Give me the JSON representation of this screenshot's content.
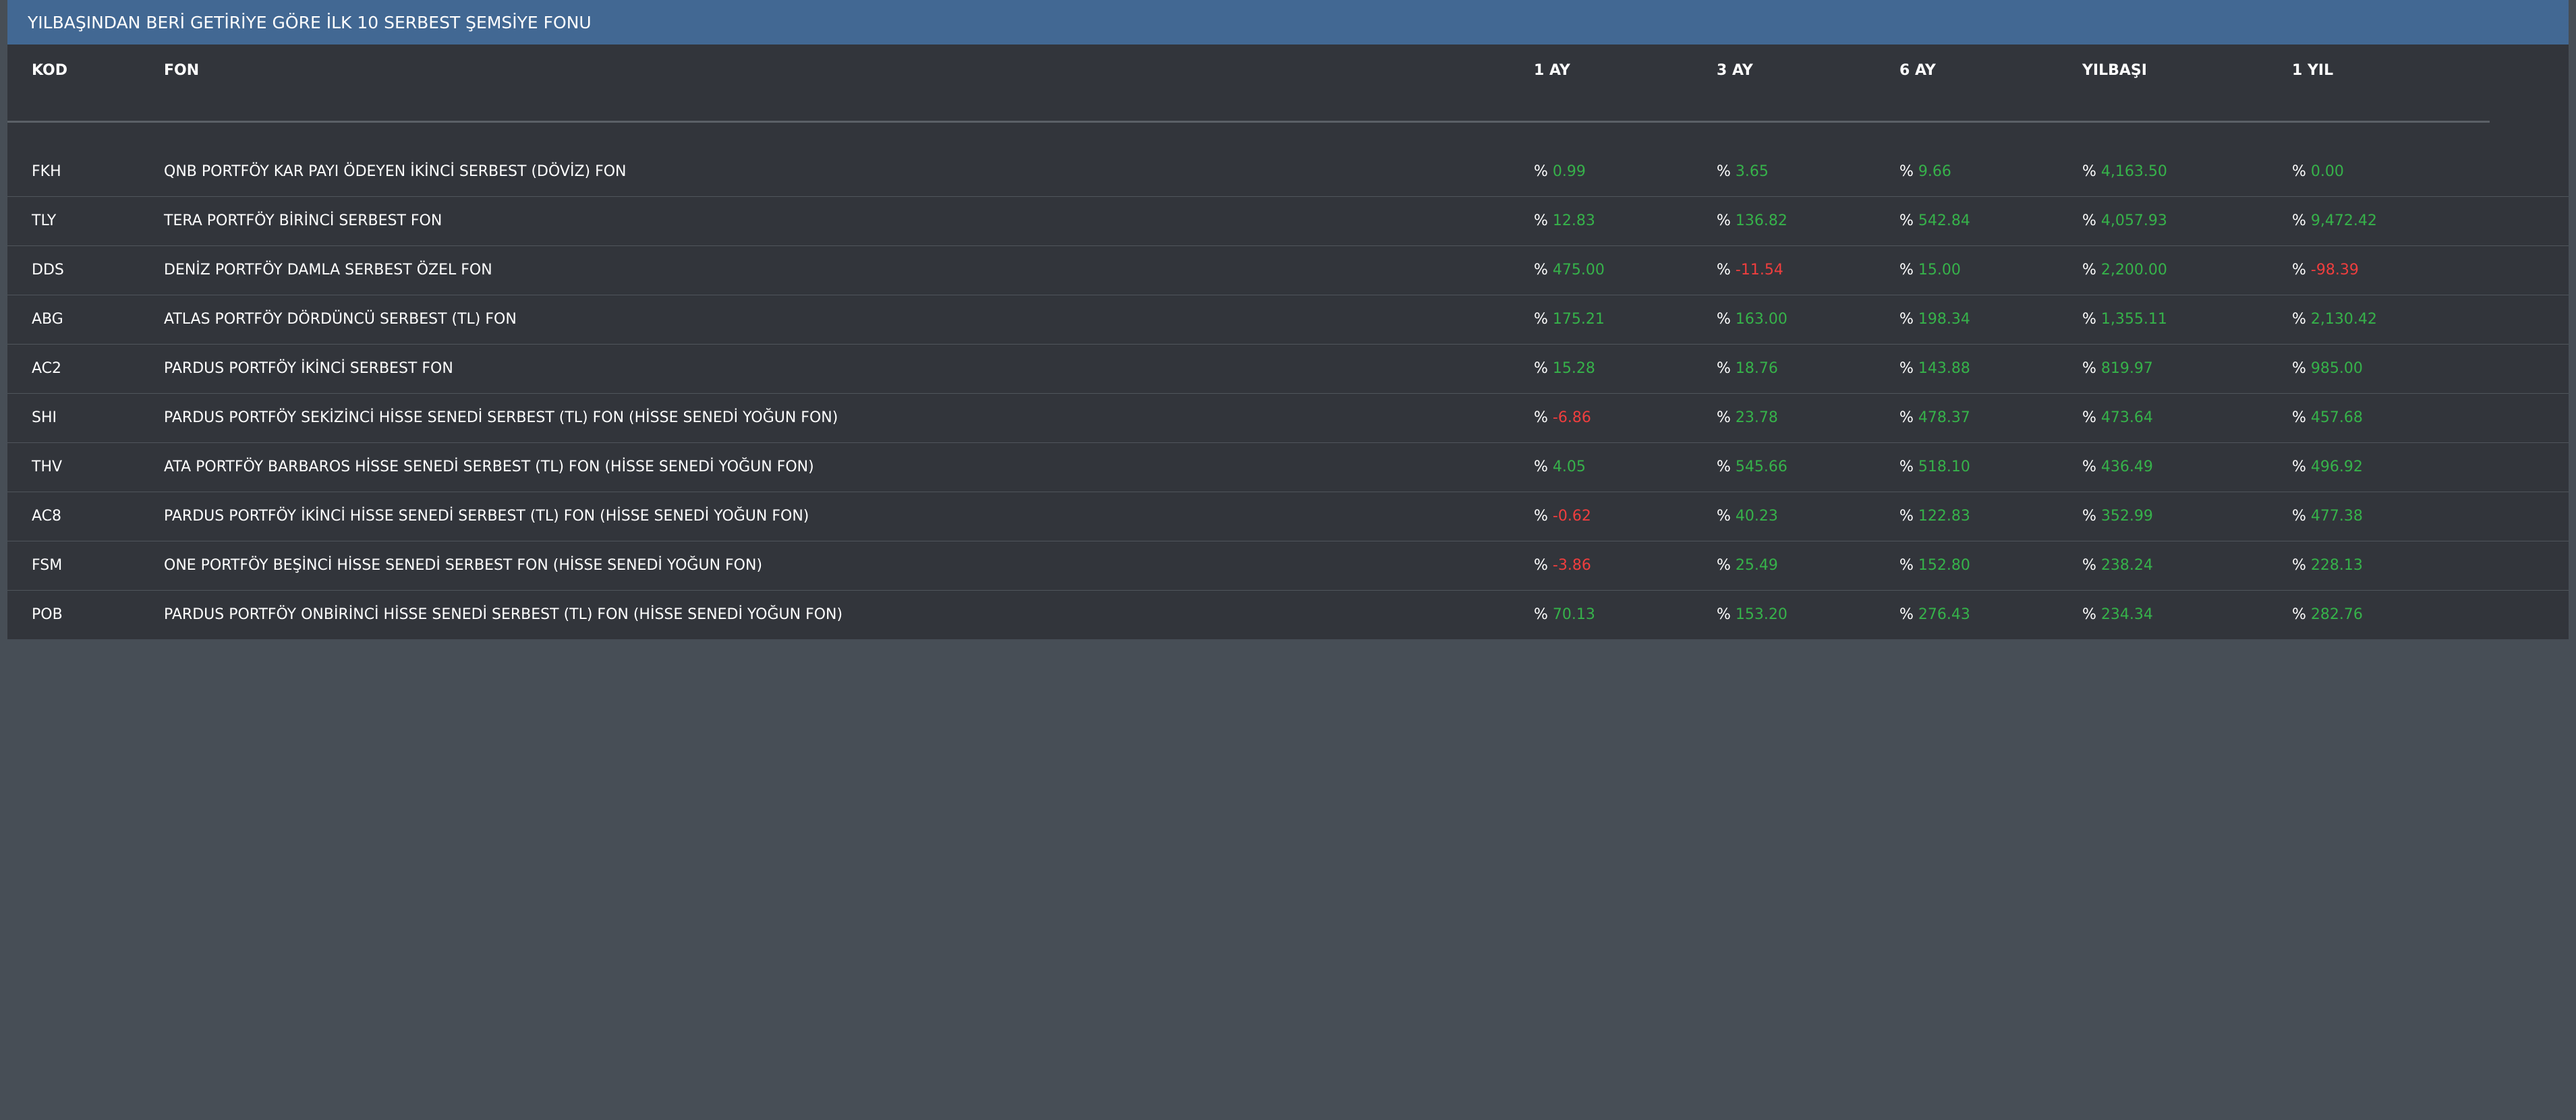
{
  "panel": {
    "title": "YILBAŞINDAN BERİ GETİRİYE GÖRE İLK 10 SERBEST ŞEMSİYE FONU"
  },
  "table": {
    "headers": {
      "kod": "KOD",
      "fon": "FON",
      "m1": "1 AY",
      "m3": "3 AY",
      "m6": "6 AY",
      "ytd": "YILBAŞI",
      "y1": "1 YIL"
    },
    "percent_symbol": "%",
    "colors": {
      "positive": "#36b24a",
      "negative": "#ef3e3e",
      "header_bar": "#426893"
    },
    "rows": [
      {
        "kod": "FKH",
        "fon": "QNB PORTFÖY KAR PAYI ÖDEYEN İKİNCİ SERBEST (DÖVİZ) FON",
        "m1": "0.99",
        "m3": "3.65",
        "m6": "9.66",
        "ytd": "4,163.50",
        "y1": "0.00"
      },
      {
        "kod": "TLY",
        "fon": "TERA PORTFÖY BİRİNCİ SERBEST FON",
        "m1": "12.83",
        "m3": "136.82",
        "m6": "542.84",
        "ytd": "4,057.93",
        "y1": "9,472.42"
      },
      {
        "kod": "DDS",
        "fon": "DENİZ PORTFÖY DAMLA SERBEST ÖZEL FON",
        "m1": "475.00",
        "m3": "-11.54",
        "m6": "15.00",
        "ytd": "2,200.00",
        "y1": "-98.39"
      },
      {
        "kod": "ABG",
        "fon": "ATLAS PORTFÖY DÖRDÜNCÜ SERBEST (TL) FON",
        "m1": "175.21",
        "m3": "163.00",
        "m6": "198.34",
        "ytd": "1,355.11",
        "y1": "2,130.42"
      },
      {
        "kod": "AC2",
        "fon": "PARDUS PORTFÖY İKİNCİ SERBEST FON",
        "m1": "15.28",
        "m3": "18.76",
        "m6": "143.88",
        "ytd": "819.97",
        "y1": "985.00"
      },
      {
        "kod": "SHI",
        "fon": "PARDUS PORTFÖY SEKİZİNCİ HİSSE SENEDİ SERBEST (TL) FON (HİSSE SENEDİ YOĞUN FON)",
        "m1": "-6.86",
        "m3": "23.78",
        "m6": "478.37",
        "ytd": "473.64",
        "y1": "457.68"
      },
      {
        "kod": "THV",
        "fon": "ATA PORTFÖY BARBAROS HİSSE SENEDİ SERBEST (TL) FON (HİSSE SENEDİ YOĞUN FON)",
        "m1": "4.05",
        "m3": "545.66",
        "m6": "518.10",
        "ytd": "436.49",
        "y1": "496.92"
      },
      {
        "kod": "AC8",
        "fon": "PARDUS PORTFÖY İKİNCİ HİSSE SENEDİ SERBEST (TL) FON (HİSSE SENEDİ YOĞUN FON)",
        "m1": "-0.62",
        "m3": "40.23",
        "m6": "122.83",
        "ytd": "352.99",
        "y1": "477.38"
      },
      {
        "kod": "FSM",
        "fon": "ONE PORTFÖY BEŞİNCİ HİSSE SENEDİ SERBEST FON (HİSSE SENEDİ YOĞUN FON)",
        "m1": "-3.86",
        "m3": "25.49",
        "m6": "152.80",
        "ytd": "238.24",
        "y1": "228.13"
      },
      {
        "kod": "POB",
        "fon": "PARDUS PORTFÖY ONBİRİNCİ HİSSE SENEDİ SERBEST (TL) FON (HİSSE SENEDİ YOĞUN FON)",
        "m1": "70.13",
        "m3": "153.20",
        "m6": "276.43",
        "ytd": "234.34",
        "y1": "282.76"
      }
    ]
  }
}
